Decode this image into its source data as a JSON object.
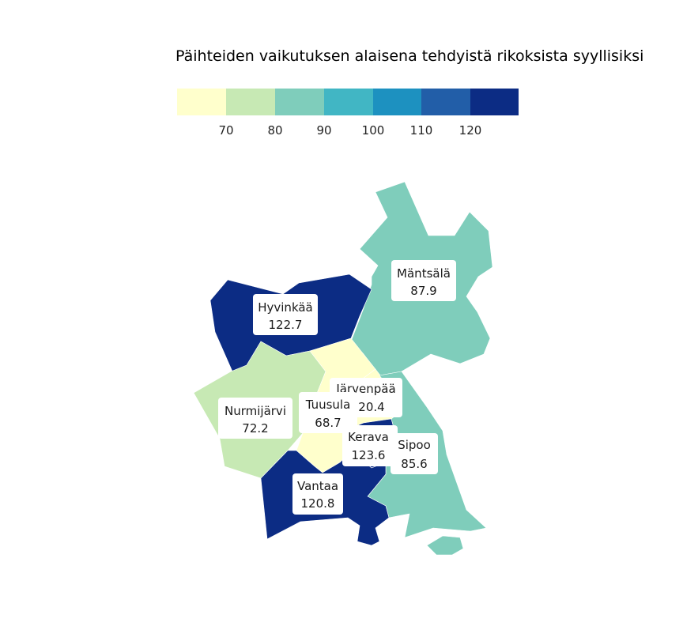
{
  "title": "Päihteiden vaikutuksen alaisena tehdyistä rikoksista syyllisiksi",
  "legend": {
    "colors": [
      "#ffffcc",
      "#c7e9b4",
      "#7fcdbb",
      "#41b6c4",
      "#1d91c0",
      "#225ea8",
      "#0c2c84"
    ],
    "ticks": [
      "70",
      "80",
      "90",
      "100",
      "110",
      "120"
    ]
  },
  "municipalities": [
    {
      "id": "mantsala",
      "name": "Mäntsälä",
      "value": "87.9",
      "color": "#7fcdbb"
    },
    {
      "id": "hyvinkaa",
      "name": "Hyvinkää",
      "value": "122.7",
      "color": "#0c2c84"
    },
    {
      "id": "nurmijarvi",
      "name": "Nurmijärvi",
      "value": "72.2",
      "color": "#c7e9b4"
    },
    {
      "id": "tuusula",
      "name": "Tuusula",
      "value": "68.7",
      "color": "#ffffcc"
    },
    {
      "id": "jarvenpaa",
      "name": "Järvenpää",
      "value": "20.4",
      "color": "#ffffcc"
    },
    {
      "id": "kerava",
      "name": "Kerava",
      "value": "123.6",
      "color": "#0c2c84"
    },
    {
      "id": "sipoo",
      "name": "Sipoo",
      "value": "85.6",
      "color": "#7fcdbb"
    },
    {
      "id": "vantaa",
      "name": "Vantaa",
      "value": "120.8",
      "color": "#0c2c84"
    }
  ]
}
